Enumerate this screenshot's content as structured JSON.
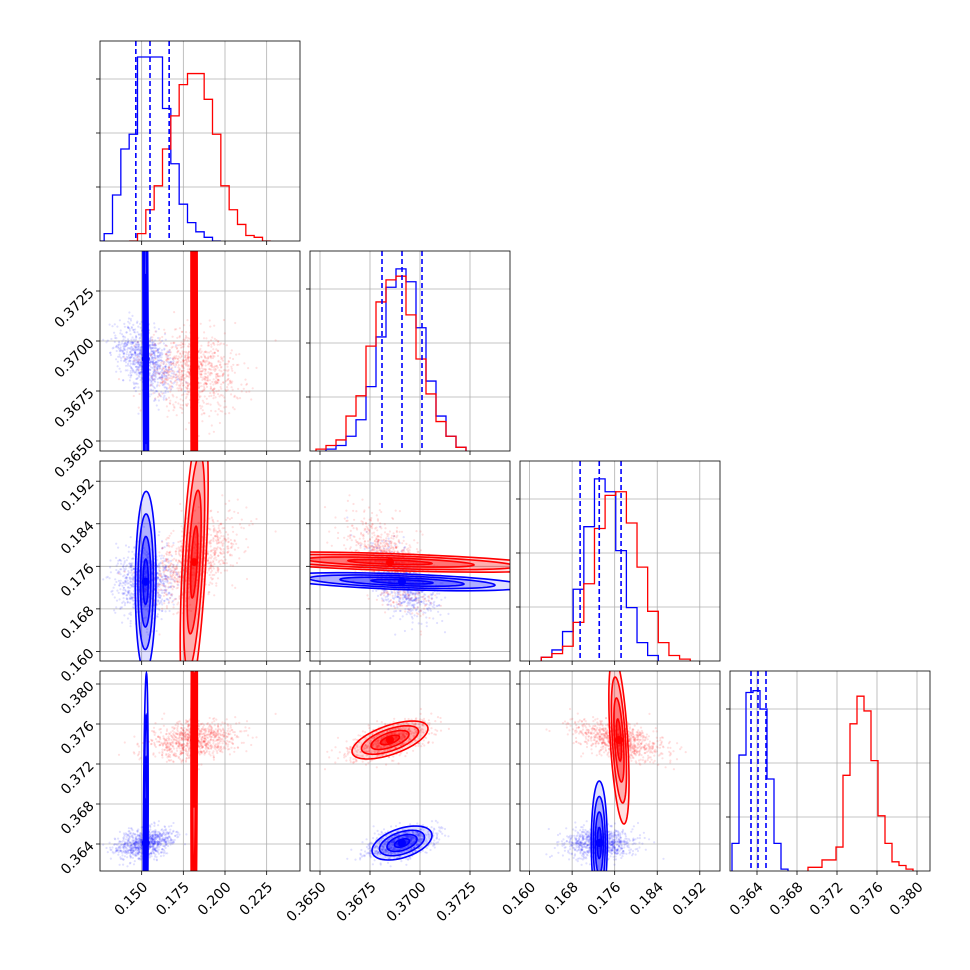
{
  "chart_data": {
    "type": "corner",
    "title": "",
    "colors": {
      "series_a": "#0000ff",
      "series_b": "#ff0000",
      "grid": "#b0b0b0"
    },
    "grid": true,
    "parameters": [
      "",
      "",
      "",
      ""
    ],
    "axes": [
      {
        "range": [
          0.125,
          0.245
        ],
        "ticks": [
          "0.150",
          "0.175",
          "0.200",
          "0.225"
        ],
        "tick_values": [
          0.15,
          0.175,
          0.2,
          0.225
        ]
      },
      {
        "range": [
          0.3645,
          0.3745
        ],
        "ticks": [
          "0.3650",
          "0.3675",
          "0.3700",
          "0.3725"
        ],
        "tick_values": [
          0.365,
          0.3675,
          0.37,
          0.3725
        ]
      },
      {
        "range": [
          0.1582,
          0.1958
        ],
        "ticks": [
          "0.160",
          "0.168",
          "0.176",
          "0.184",
          "0.192"
        ],
        "tick_values": [
          0.16,
          0.168,
          0.176,
          0.184,
          0.192
        ]
      },
      {
        "range": [
          0.3613,
          0.3813
        ],
        "ticks": [
          "0.364",
          "0.368",
          "0.372",
          "0.376",
          "0.380"
        ],
        "tick_values": [
          0.364,
          0.368,
          0.372,
          0.376,
          0.38
        ]
      }
    ],
    "marginals": [
      {
        "quantiles_a": [
          0.1465,
          0.155,
          0.1665
        ],
        "series": [
          {
            "name": "",
            "color": "#0000ff",
            "edges": [
              0.125,
              0.1275,
              0.1325,
              0.1375,
              0.1425,
              0.1475,
              0.1525,
              0.1575,
              0.1625,
              0.1675,
              0.1725,
              0.1775,
              0.1825,
              0.1875,
              0.1925,
              0.1975
            ],
            "counts": [
              0,
              0.04,
              0.25,
              0.5,
              0.58,
              1.0,
              1.0,
              1.0,
              0.72,
              0.42,
              0.2,
              0.1,
              0.05,
              0.02,
              0
            ]
          },
          {
            "name": "",
            "color": "#ff0000",
            "edges": [
              0.1425,
              0.1475,
              0.1525,
              0.1575,
              0.1625,
              0.1675,
              0.1725,
              0.1775,
              0.1825,
              0.1875,
              0.1925,
              0.1975,
              0.2025,
              0.2075,
              0.2125,
              0.2175,
              0.2225,
              0.2275
            ],
            "counts": [
              0,
              0.04,
              0.17,
              0.3,
              0.5,
              0.68,
              0.85,
              0.91,
              0.91,
              0.77,
              0.58,
              0.3,
              0.17,
              0.09,
              0.03,
              0.02,
              0
            ]
          }
        ]
      },
      {
        "quantiles_a": [
          0.3681,
          0.3691,
          0.3701
        ],
        "series": [
          {
            "name": "",
            "color": "#0000ff",
            "edges": [
              0.3653,
              0.3658,
              0.3663,
              0.3668,
              0.3673,
              0.3678,
              0.3683,
              0.3688,
              0.3693,
              0.3698,
              0.3703,
              0.3708,
              0.3713,
              0.3718,
              0.3723
            ],
            "counts": [
              0.01,
              0.03,
              0.08,
              0.17,
              0.35,
              0.62,
              0.89,
              0.99,
              0.92,
              0.67,
              0.38,
              0.19,
              0.08,
              0.02
            ]
          },
          {
            "name": "",
            "color": "#ff0000",
            "edges": [
              0.3648,
              0.3653,
              0.3658,
              0.3663,
              0.3668,
              0.3673,
              0.3678,
              0.3683,
              0.3688,
              0.3693,
              0.3698,
              0.3703,
              0.3708,
              0.3713,
              0.3718,
              0.3723
            ],
            "counts": [
              0.01,
              0.03,
              0.06,
              0.19,
              0.3,
              0.57,
              0.81,
              0.93,
              0.95,
              0.74,
              0.5,
              0.31,
              0.16,
              0.08,
              0.02
            ]
          }
        ]
      },
      {
        "quantiles_a": [
          0.1695,
          0.1731,
          0.1772
        ],
        "series": [
          {
            "name": "",
            "color": "#0000ff",
            "edges": [
              0.1622,
              0.1642,
              0.1662,
              0.1682,
              0.1702,
              0.1722,
              0.1742,
              0.1762,
              0.1782,
              0.1802,
              0.1822,
              0.1842
            ],
            "counts": [
              0.02,
              0.06,
              0.16,
              0.39,
              0.73,
              0.99,
              0.92,
              0.6,
              0.29,
              0.1,
              0.03
            ]
          },
          {
            "name": "",
            "color": "#ff0000",
            "edges": [
              0.1622,
              0.1642,
              0.1662,
              0.1682,
              0.1702,
              0.1722,
              0.1742,
              0.1762,
              0.1782,
              0.1802,
              0.1822,
              0.1842,
              0.1862,
              0.1882,
              0.1902
            ],
            "counts": [
              0.02,
              0.04,
              0.08,
              0.21,
              0.42,
              0.72,
              0.9,
              0.92,
              0.75,
              0.51,
              0.27,
              0.1,
              0.03,
              0.01
            ]
          }
        ]
      },
      {
        "quantiles_a": [
          0.3634,
          0.3641,
          0.3649
        ],
        "series": [
          {
            "name": "",
            "color": "#0000ff",
            "edges": [
              0.3615,
              0.3622,
              0.3629,
              0.3636,
              0.3643,
              0.365,
              0.3657,
              0.3664,
              0.3671
            ],
            "counts": [
              0.15,
              0.63,
              0.97,
              0.98,
              0.88,
              0.5,
              0.15,
              0.01
            ]
          },
          {
            "name": "",
            "color": "#ff0000",
            "edges": [
              0.3691,
              0.3698,
              0.3705,
              0.3712,
              0.3719,
              0.3726,
              0.3733,
              0.374,
              0.3747,
              0.3754,
              0.3761,
              0.3768,
              0.3775,
              0.3782,
              0.3789,
              0.3796
            ],
            "counts": [
              0.02,
              0.02,
              0.06,
              0.06,
              0.13,
              0.52,
              0.8,
              0.95,
              0.87,
              0.6,
              0.3,
              0.15,
              0.05,
              0.03,
              0.01
            ]
          }
        ]
      }
    ],
    "joint_distributions": [
      {
        "color": "#0000ff",
        "mean": [
          0.1524,
          0.3691,
          0.1731,
          0.3641
        ],
        "sd": [
          0.0085,
          0.00085,
          0.0031,
          0.00075
        ],
        "corr": [
          [
            1,
            -0.45,
            0.05,
            0.3
          ],
          [
            -0.45,
            1,
            -0.5,
            0.45
          ],
          [
            0.05,
            -0.5,
            1,
            0
          ],
          [
            0.3,
            0.45,
            0,
            1
          ]
        ]
      },
      {
        "color": "#ff0000",
        "mean": [
          0.1815,
          0.3685,
          0.1768,
          0.3744
        ],
        "sd": [
          0.0135,
          0.00095,
          0.0042,
          0.00095
        ],
        "corr": [
          [
            1,
            -0.15,
            0.55,
            0.2
          ],
          [
            -0.15,
            1,
            -0.55,
            0.6
          ],
          [
            0.55,
            -0.55,
            1,
            -0.5
          ],
          [
            0.2,
            0.6,
            -0.5,
            1
          ]
        ]
      }
    ],
    "contour_levels_sigma": [
      0.5,
      1.0,
      1.5,
      2.0
    ],
    "quantile_line_style": "dashed",
    "legend": "none"
  }
}
